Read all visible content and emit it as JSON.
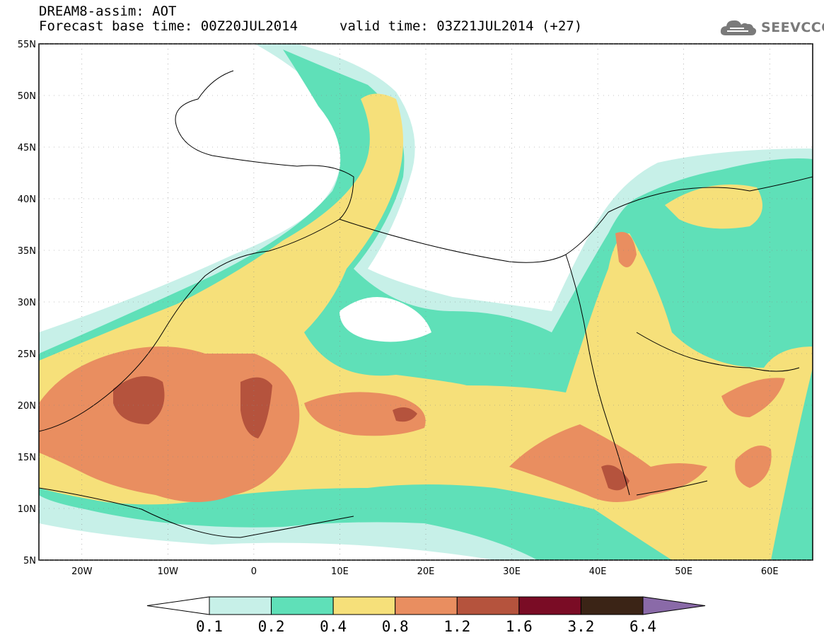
{
  "header": {
    "title": "DREAM8-assim: AOT",
    "base_time": "Forecast base time: 00Z20JUL2014",
    "valid_time": "valid time: 03Z21JUL2014 (+27)"
  },
  "logo": {
    "text": "SEEVCCC",
    "icon": "cloud-icon"
  },
  "map": {
    "lat_ticks": [
      "55N",
      "50N",
      "45N",
      "40N",
      "35N",
      "30N",
      "25N",
      "20N",
      "15N",
      "10N",
      "5N"
    ],
    "lon_ticks": [
      "20W",
      "10W",
      "0",
      "10E",
      "20E",
      "30E",
      "40E",
      "50E",
      "60E"
    ],
    "lat_range": [
      5,
      55
    ],
    "lon_range": [
      -25,
      65
    ]
  },
  "colorbar": {
    "labels": [
      "0.1",
      "0.2",
      "0.4",
      "0.8",
      "1.2",
      "1.6",
      "3.2",
      "6.4"
    ],
    "colors": [
      "#ffffff",
      "#c7f0e8",
      "#5fe0b8",
      "#f6e07a",
      "#e98e60",
      "#b5533d",
      "#7a0c25",
      "#3b2416",
      "#8a6aa8"
    ]
  }
}
